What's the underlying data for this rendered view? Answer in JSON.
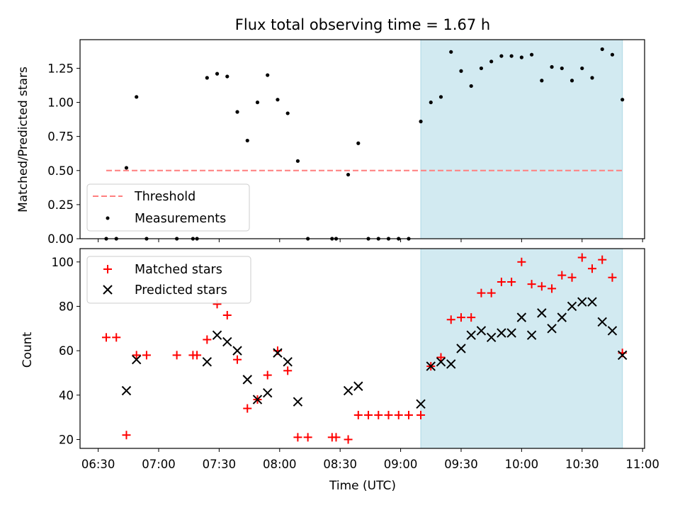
{
  "figure_title": "Flux total observing time = 1.67 h",
  "x_axis": {
    "label": "Time (UTC)",
    "ticks": [
      "06:30",
      "07:00",
      "07:30",
      "08:00",
      "08:30",
      "09:00",
      "09:30",
      "10:00",
      "10:30",
      "11:00"
    ],
    "range": [
      "06:21",
      "11:01"
    ]
  },
  "colors": {
    "span": "#add8e6",
    "threshold": "#ff7f7f",
    "matched": "#ff0000",
    "predicted": "#000000",
    "measurement": "#000000"
  },
  "chart_data": [
    {
      "type": "scatter",
      "panel": "top",
      "title": "Flux total observing time = 1.67 h",
      "xlabel": "",
      "ylabel": "Matched/Predicted stars",
      "ylim": [
        0,
        1.46
      ],
      "yticks": [
        "0.00",
        "0.25",
        "0.50",
        "0.75",
        "1.00",
        "1.25"
      ],
      "grid": false,
      "legend_placement": "lower-left",
      "shaded_span": [
        "09:10",
        "10:50"
      ],
      "threshold": {
        "name": "Threshold",
        "value": 0.5,
        "x_range": [
          "06:34",
          "10:50"
        ]
      },
      "series": [
        {
          "name": "Measurements",
          "points": [
            [
              "06:34",
              0.0
            ],
            [
              "06:39",
              0.0
            ],
            [
              "06:44",
              0.52
            ],
            [
              "06:49",
              1.04
            ],
            [
              "06:54",
              0.0
            ],
            [
              "07:09",
              0.0
            ],
            [
              "07:17",
              0.0
            ],
            [
              "07:19",
              0.0
            ],
            [
              "07:24",
              1.18
            ],
            [
              "07:29",
              1.21
            ],
            [
              "07:34",
              1.19
            ],
            [
              "07:39",
              0.93
            ],
            [
              "07:44",
              0.72
            ],
            [
              "07:49",
              1.0
            ],
            [
              "07:54",
              1.2
            ],
            [
              "07:59",
              1.02
            ],
            [
              "08:04",
              0.92
            ],
            [
              "08:09",
              0.57
            ],
            [
              "08:14",
              0.0
            ],
            [
              "08:26",
              0.0
            ],
            [
              "08:28",
              0.0
            ],
            [
              "08:34",
              0.47
            ],
            [
              "08:39",
              0.7
            ],
            [
              "08:44",
              0.0
            ],
            [
              "08:49",
              0.0
            ],
            [
              "08:54",
              0.0
            ],
            [
              "08:59",
              0.0
            ],
            [
              "09:04",
              0.0
            ],
            [
              "09:10",
              0.86
            ],
            [
              "09:15",
              1.0
            ],
            [
              "09:20",
              1.04
            ],
            [
              "09:25",
              1.37
            ],
            [
              "09:30",
              1.23
            ],
            [
              "09:35",
              1.12
            ],
            [
              "09:40",
              1.25
            ],
            [
              "09:45",
              1.3
            ],
            [
              "09:50",
              1.34
            ],
            [
              "09:55",
              1.34
            ],
            [
              "10:00",
              1.33
            ],
            [
              "10:05",
              1.35
            ],
            [
              "10:10",
              1.16
            ],
            [
              "10:15",
              1.26
            ],
            [
              "10:20",
              1.25
            ],
            [
              "10:25",
              1.16
            ],
            [
              "10:30",
              1.25
            ],
            [
              "10:35",
              1.18
            ],
            [
              "10:40",
              1.39
            ],
            [
              "10:45",
              1.35
            ],
            [
              "10:50",
              1.02
            ]
          ]
        }
      ]
    },
    {
      "type": "scatter",
      "panel": "bottom",
      "xlabel": "Time (UTC)",
      "ylabel": "Count",
      "ylim": [
        16,
        106
      ],
      "yticks": [
        "20",
        "40",
        "60",
        "80",
        "100"
      ],
      "grid": false,
      "legend_placement": "top-left",
      "shaded_span": [
        "09:10",
        "10:50"
      ],
      "series": [
        {
          "name": "Matched stars",
          "marker": "plus",
          "points": [
            [
              "06:34",
              66
            ],
            [
              "06:39",
              66
            ],
            [
              "06:44",
              22
            ],
            [
              "06:49",
              58
            ],
            [
              "06:54",
              58
            ],
            [
              "07:09",
              58
            ],
            [
              "07:17",
              58
            ],
            [
              "07:19",
              58
            ],
            [
              "07:24",
              65
            ],
            [
              "07:29",
              81
            ],
            [
              "07:34",
              76
            ],
            [
              "07:39",
              56
            ],
            [
              "07:44",
              34
            ],
            [
              "07:49",
              38
            ],
            [
              "07:54",
              49
            ],
            [
              "07:59",
              60
            ],
            [
              "08:04",
              51
            ],
            [
              "08:09",
              21
            ],
            [
              "08:14",
              21
            ],
            [
              "08:26",
              21
            ],
            [
              "08:28",
              21
            ],
            [
              "08:34",
              20
            ],
            [
              "08:39",
              31
            ],
            [
              "08:44",
              31
            ],
            [
              "08:49",
              31
            ],
            [
              "08:54",
              31
            ],
            [
              "08:59",
              31
            ],
            [
              "09:04",
              31
            ],
            [
              "09:10",
              31
            ],
            [
              "09:15",
              53
            ],
            [
              "09:20",
              57
            ],
            [
              "09:25",
              74
            ],
            [
              "09:30",
              75
            ],
            [
              "09:35",
              75
            ],
            [
              "09:40",
              86
            ],
            [
              "09:45",
              86
            ],
            [
              "09:50",
              91
            ],
            [
              "09:55",
              91
            ],
            [
              "10:00",
              100
            ],
            [
              "10:05",
              90
            ],
            [
              "10:10",
              89
            ],
            [
              "10:15",
              88
            ],
            [
              "10:20",
              94
            ],
            [
              "10:25",
              93
            ],
            [
              "10:30",
              102
            ],
            [
              "10:35",
              97
            ],
            [
              "10:40",
              101
            ],
            [
              "10:45",
              93
            ],
            [
              "10:50",
              59
            ]
          ]
        },
        {
          "name": "Predicted stars",
          "marker": "x",
          "points": [
            [
              "06:44",
              42
            ],
            [
              "06:49",
              56
            ],
            [
              "07:24",
              55
            ],
            [
              "07:29",
              67
            ],
            [
              "07:34",
              64
            ],
            [
              "07:39",
              60
            ],
            [
              "07:44",
              47
            ],
            [
              "07:49",
              38
            ],
            [
              "07:54",
              41
            ],
            [
              "07:59",
              59
            ],
            [
              "08:04",
              55
            ],
            [
              "08:09",
              37
            ],
            [
              "08:34",
              42
            ],
            [
              "08:39",
              44
            ],
            [
              "09:10",
              36
            ],
            [
              "09:15",
              53
            ],
            [
              "09:20",
              55
            ],
            [
              "09:25",
              54
            ],
            [
              "09:30",
              61
            ],
            [
              "09:35",
              67
            ],
            [
              "09:40",
              69
            ],
            [
              "09:45",
              66
            ],
            [
              "09:50",
              68
            ],
            [
              "09:55",
              68
            ],
            [
              "10:00",
              75
            ],
            [
              "10:05",
              67
            ],
            [
              "10:10",
              77
            ],
            [
              "10:15",
              70
            ],
            [
              "10:20",
              75
            ],
            [
              "10:25",
              80
            ],
            [
              "10:30",
              82
            ],
            [
              "10:35",
              82
            ],
            [
              "10:40",
              73
            ],
            [
              "10:45",
              69
            ],
            [
              "10:50",
              58
            ]
          ]
        }
      ]
    }
  ]
}
